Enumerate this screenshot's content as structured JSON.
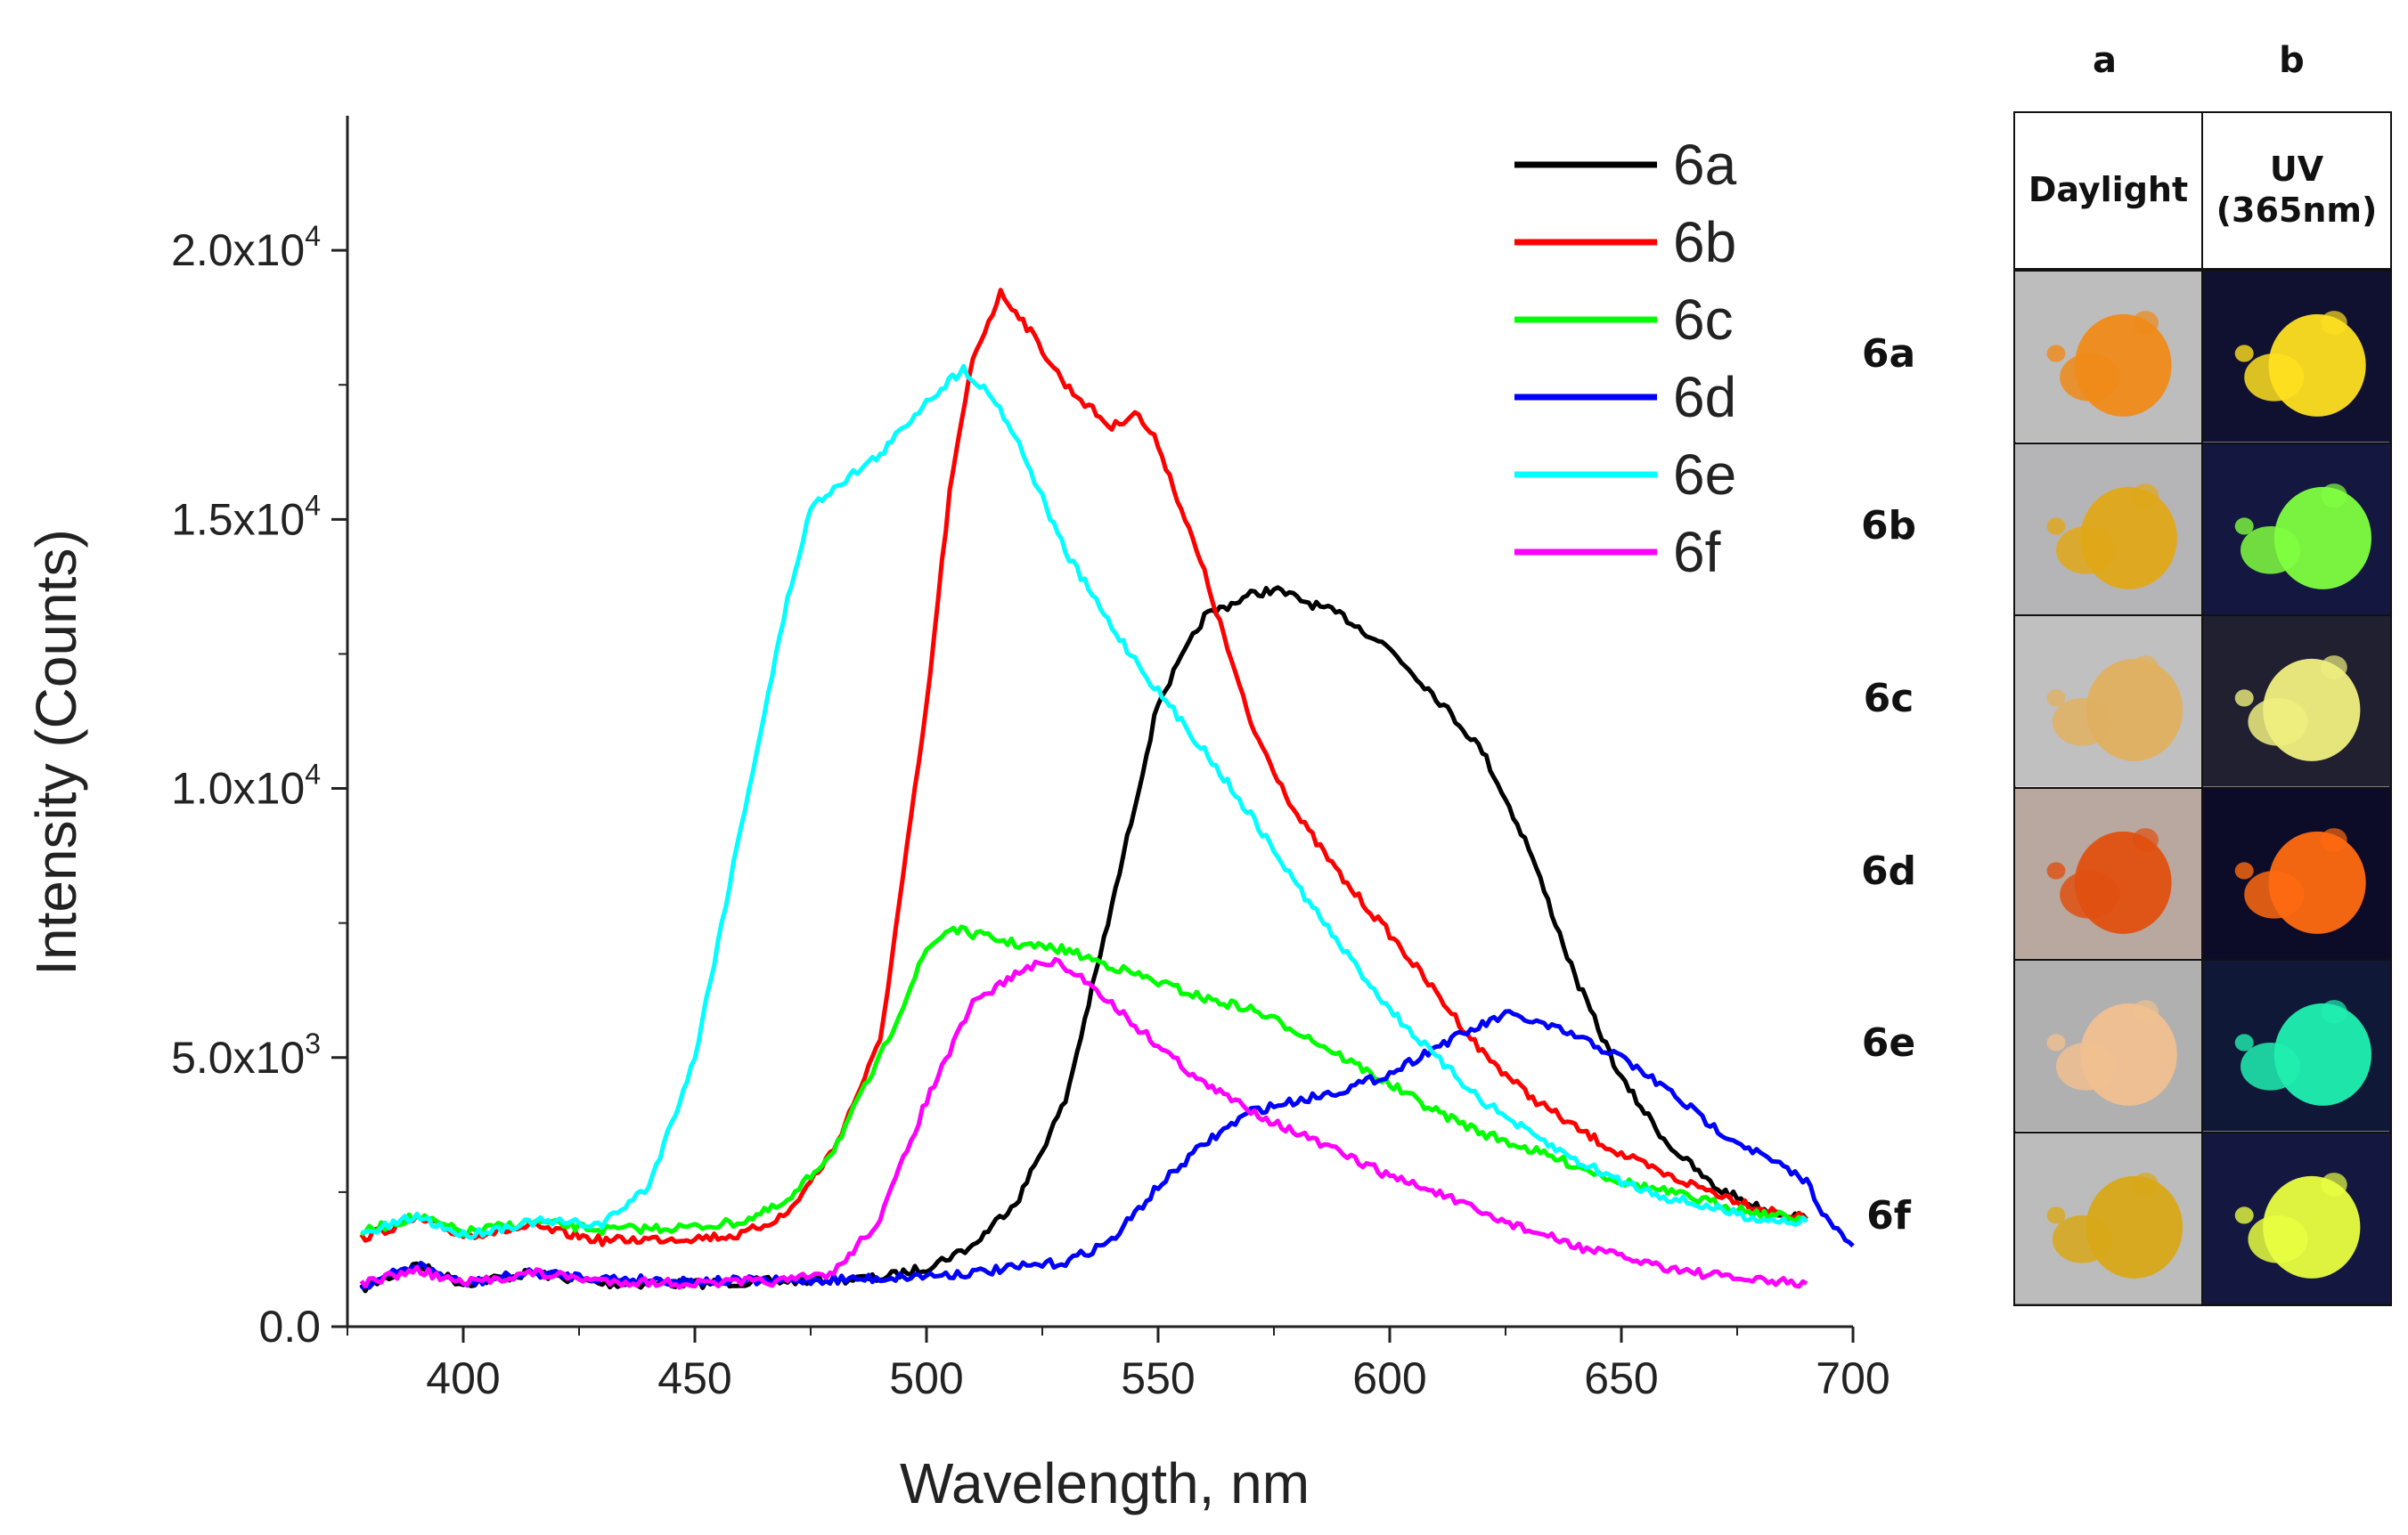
{
  "chart_data": {
    "type": "line",
    "title": "",
    "xlabel": "Wavelength, nm",
    "ylabel": "Intensity (Counts)",
    "xlim": [
      375,
      700
    ],
    "ylim": [
      0,
      22500
    ],
    "xticks": [
      400,
      450,
      500,
      550,
      600,
      650,
      700
    ],
    "yticks": [
      {
        "value": 0,
        "mantissa": "0.0",
        "exp": ""
      },
      {
        "value": 5000,
        "mantissa": "5.0x10",
        "exp": "3"
      },
      {
        "value": 10000,
        "mantissa": "1.0x10",
        "exp": "4"
      },
      {
        "value": 15000,
        "mantissa": "1.5x10",
        "exp": "4"
      },
      {
        "value": 20000,
        "mantissa": "2.0x10",
        "exp": "4"
      }
    ],
    "legend_position": "top-right",
    "series": [
      {
        "name": "6a",
        "color": "#000000",
        "x": [
          378,
          390,
          400,
          415,
          430,
          450,
          470,
          490,
          500,
          510,
          520,
          530,
          540,
          550,
          560,
          570,
          575,
          590,
          600,
          610,
          620,
          630,
          640,
          650,
          660,
          670,
          680,
          690
        ],
        "y": [
          700,
          1150,
          800,
          1000,
          800,
          800,
          850,
          900,
          1100,
          1500,
          2400,
          4200,
          7800,
          11600,
          13200,
          13600,
          13700,
          13200,
          12600,
          11700,
          10700,
          8900,
          6500,
          4600,
          3400,
          2600,
          2200,
          2000
        ]
      },
      {
        "name": "6b",
        "color": "#ff0000",
        "x": [
          378,
          390,
          400,
          415,
          430,
          450,
          460,
          470,
          480,
          490,
          500,
          505,
          510,
          516,
          520,
          530,
          540,
          545,
          550,
          560,
          570,
          580,
          590,
          600,
          610,
          620,
          630,
          640,
          650,
          660,
          670,
          680,
          690
        ],
        "y": [
          1650,
          2000,
          1700,
          1850,
          1600,
          1650,
          1700,
          2100,
          3300,
          5300,
          11500,
          15500,
          18000,
          19200,
          18800,
          17500,
          16700,
          17000,
          16400,
          14000,
          11200,
          9500,
          8300,
          7300,
          6200,
          5100,
          4300,
          3700,
          3200,
          2800,
          2500,
          2200,
          2000
        ]
      },
      {
        "name": "6c",
        "color": "#00ff00",
        "x": [
          378,
          390,
          400,
          415,
          430,
          450,
          460,
          470,
          480,
          490,
          500,
          505,
          510,
          520,
          530,
          540,
          550,
          560,
          570,
          580,
          590,
          600,
          610,
          620,
          630,
          640,
          650,
          660,
          670,
          680,
          690
        ],
        "y": [
          1750,
          2050,
          1750,
          1950,
          1800,
          1850,
          1950,
          2300,
          3300,
          5000,
          7000,
          7400,
          7300,
          7100,
          7000,
          6700,
          6400,
          6100,
          5900,
          5500,
          5000,
          4500,
          4000,
          3600,
          3300,
          3000,
          2700,
          2500,
          2300,
          2100,
          2000
        ]
      },
      {
        "name": "6d",
        "color": "#0000ff",
        "x": [
          378,
          390,
          400,
          415,
          430,
          450,
          470,
          490,
          510,
          530,
          540,
          550,
          560,
          570,
          580,
          590,
          600,
          610,
          620,
          625,
          630,
          640,
          650,
          660,
          670,
          680,
          690,
          695,
          700
        ],
        "y": [
          750,
          1150,
          800,
          1000,
          900,
          850,
          850,
          900,
          1000,
          1200,
          1600,
          2600,
          3400,
          4000,
          4200,
          4400,
          4700,
          5200,
          5600,
          5800,
          5700,
          5400,
          5000,
          4400,
          3700,
          3200,
          2700,
          1900,
          1500
        ]
      },
      {
        "name": "6e",
        "color": "#00ffff",
        "x": [
          378,
          390,
          400,
          415,
          430,
          440,
          450,
          460,
          470,
          475,
          480,
          490,
          500,
          508,
          515,
          520,
          530,
          540,
          550,
          560,
          570,
          580,
          590,
          600,
          610,
          620,
          630,
          640,
          650,
          660,
          670,
          680,
          690
        ],
        "y": [
          1700,
          2050,
          1700,
          1950,
          1900,
          2600,
          5000,
          9300,
          13500,
          15200,
          15600,
          16200,
          17200,
          17800,
          17200,
          16400,
          14400,
          13000,
          11800,
          10700,
          9500,
          8200,
          7000,
          5900,
          5000,
          4200,
          3600,
          3100,
          2700,
          2400,
          2200,
          2000,
          1950
        ]
      },
      {
        "name": "6f",
        "color": "#ff00ff",
        "x": [
          378,
          390,
          400,
          415,
          430,
          450,
          470,
          480,
          490,
          500,
          510,
          520,
          527,
          535,
          545,
          560,
          575,
          590,
          600,
          610,
          620,
          630,
          640,
          650,
          660,
          670,
          680,
          690
        ],
        "y": [
          800,
          1050,
          800,
          1000,
          850,
          800,
          850,
          1000,
          2000,
          4200,
          6000,
          6600,
          6800,
          6400,
          5600,
          4500,
          3800,
          3200,
          2800,
          2500,
          2100,
          1800,
          1500,
          1300,
          1100,
          950,
          850,
          800
        ]
      }
    ]
  },
  "panel": {
    "col_a": "a",
    "col_b": "b",
    "header_a": "Daylight",
    "header_b_line1": "UV",
    "header_b_line2": "(365nm)",
    "rows": [
      {
        "label": "6a",
        "day_bg": "#bdbdbd",
        "day_fg": "#f08a18",
        "uv_bg": "#101030",
        "uv_fg": "#ffe020"
      },
      {
        "label": "6b",
        "day_bg": "#b5b5b8",
        "day_fg": "#e0a818",
        "uv_bg": "#141840",
        "uv_fg": "#80ff40"
      },
      {
        "label": "6c",
        "day_bg": "#c0c0c0",
        "day_fg": "#e0b060",
        "uv_bg": "#202030",
        "uv_fg": "#f0f080"
      },
      {
        "label": "6d",
        "day_bg": "#b8a8a0",
        "day_fg": "#e05010",
        "uv_bg": "#0c0c28",
        "uv_fg": "#ff6a10"
      },
      {
        "label": "6e",
        "day_bg": "#b0b0b0",
        "day_fg": "#f0c090",
        "uv_bg": "#101838",
        "uv_fg": "#20f0b0"
      },
      {
        "label": "6f",
        "day_bg": "#bcbcbc",
        "day_fg": "#d8a818",
        "uv_bg": "#141840",
        "uv_fg": "#e8ff40"
      }
    ]
  }
}
